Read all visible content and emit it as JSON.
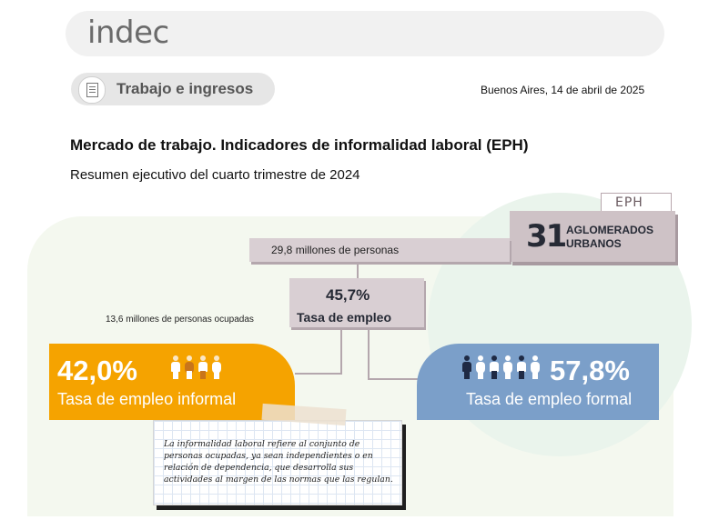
{
  "header": {
    "logo_text": "indec"
  },
  "category": {
    "label": "Trabajo e ingresos",
    "icon": "document-icon"
  },
  "date_line": "Buenos Aires, 14 de abril de 2025",
  "report": {
    "title": "Mercado de trabajo. Indicadores de informalidad laboral (EPH)",
    "subtitle": "Resumen ejecutivo del cuarto trimestre de 2024"
  },
  "infographic": {
    "eph_tag": "EPH",
    "aglomerados": {
      "number": "31",
      "line1": "AGLOMERADOS",
      "line2": "URBANOS"
    },
    "population": "29,8 millones de personas",
    "employment": {
      "value": "45,7%",
      "label": "Tasa de empleo",
      "occupied": "13,6 millones de personas ocupadas"
    },
    "informal": {
      "value": "42,0%",
      "label": "Tasa de empleo informal",
      "share": 0.42,
      "color": "#f5a300",
      "people_icons": [
        "person-icon-male",
        "person-icon-female",
        "person-icon-male",
        "person-icon-female"
      ]
    },
    "formal": {
      "value": "57,8%",
      "label": "Tasa de empleo formal",
      "share": 0.578,
      "color": "#7b9fc9",
      "people_icons": [
        "person-icon-male",
        "person-icon-female",
        "person-icon-male",
        "person-icon-female",
        "person-icon-male",
        "person-icon-female"
      ]
    },
    "note": "La informalidad laboral refiere al conjunto de personas ocupadas, ya sean independientes o en relación de dependencia, que desarrolla sus actividades al margen de las normas que las regulan."
  }
}
